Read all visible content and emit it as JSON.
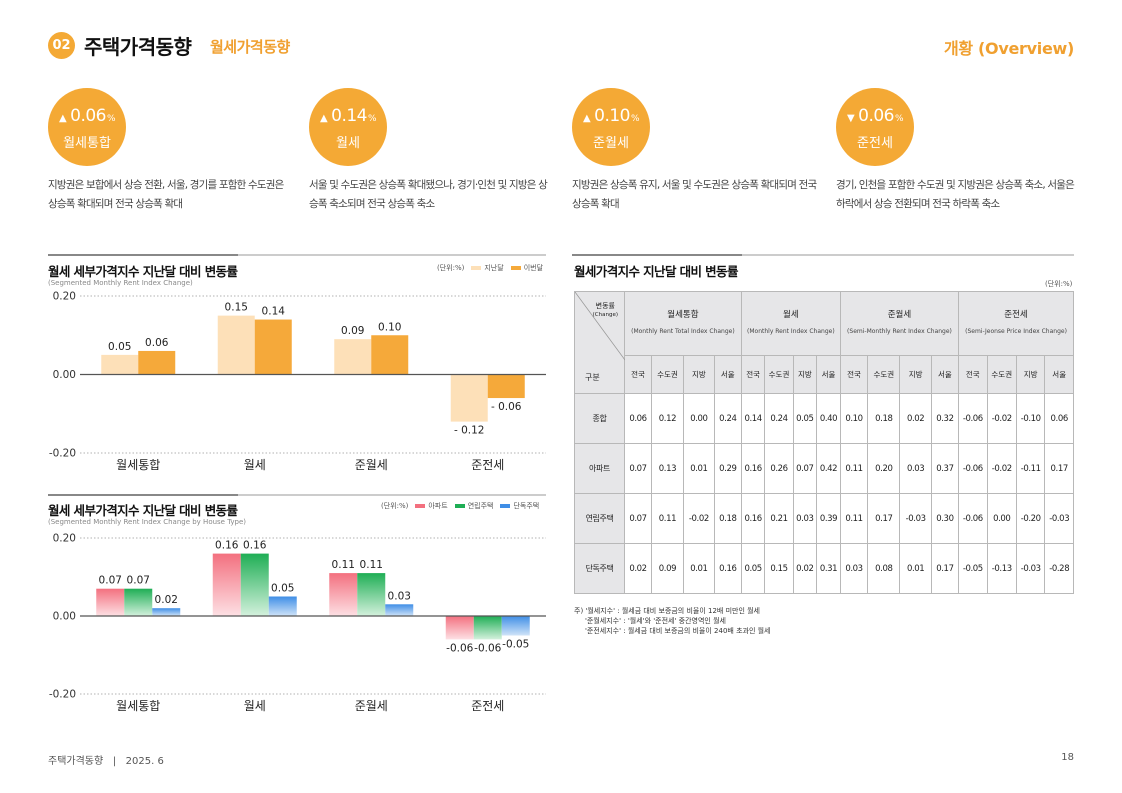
{
  "header": {
    "badge": "02",
    "title": "주택가격동향",
    "subtitle": "월세가격동향",
    "right": "개황 (Overview)"
  },
  "stats": [
    {
      "arrow": "▲",
      "value": "0.06",
      "unit": "%",
      "label": "월세통합",
      "desc": "지방권은 보합에서 상승 전환, 서울, 경기를 포함한 수도권은 상승폭 확대되며 전국 상승폭 확대"
    },
    {
      "arrow": "▲",
      "value": "0.14",
      "unit": "%",
      "label": "월세",
      "desc": "서울 및 수도권은 상승폭 확대됐으나, 경기·인천 및 지방은 상승폭 축소되며 전국 상승폭 축소"
    },
    {
      "arrow": "▲",
      "value": "0.10",
      "unit": "%",
      "label": "준월세",
      "desc": "지방권은 상승폭 유지, 서울 및 수도권은 상승폭 확대되며 전국 상승폭 확대"
    },
    {
      "arrow": "▼",
      "value": "0.06",
      "unit": "%",
      "label": "준전세",
      "desc": "경기, 인천을 포함한 수도권 및 지방권은 상승폭 축소, 서울은 하락에서 상승 전환되며 전국 하락폭 축소"
    }
  ],
  "colors": {
    "accent": "#f4a935",
    "prev_month": "#fde0b8",
    "this_month": "#f5a93a",
    "apt_top": "#f3707f",
    "apt_bottom": "#fde0e4",
    "row_top": "#1fae55",
    "row_bottom": "#d4f1dd",
    "det_top": "#3f8ee6",
    "det_bottom": "#cfe3f8"
  },
  "chart_data": [
    {
      "type": "bar",
      "title": "월세 세부가격지수 지난달 대비 변동률",
      "subtitle": "(Segmented Monthly Rent Index Change)",
      "unit": "(단위:%)",
      "categories": [
        "월세통합",
        "월세",
        "준월세",
        "준전세"
      ],
      "series": [
        {
          "name": "지난달",
          "values": [
            0.05,
            0.15,
            0.09,
            -0.12
          ],
          "labels": [
            "0.05",
            "0.15",
            "0.09",
            "- 0.12"
          ]
        },
        {
          "name": "이번달",
          "values": [
            0.06,
            0.14,
            0.1,
            -0.06
          ],
          "labels": [
            "0.06",
            "0.14",
            "0.10",
            "- 0.06"
          ]
        }
      ],
      "ylim": [
        -0.2,
        0.2
      ],
      "yticks": [
        "0.20",
        "0.00",
        "-0.20"
      ],
      "legend": "top-right",
      "grid": false
    },
    {
      "type": "bar",
      "title": "월세 세부가격지수 지난달 대비 변동률",
      "subtitle": "(Segmented Monthly Rent Index Change by House Type)",
      "unit": "(단위:%)",
      "categories": [
        "월세통합",
        "월세",
        "준월세",
        "준전세"
      ],
      "series": [
        {
          "name": "아파트",
          "values": [
            0.07,
            0.16,
            0.11,
            -0.06
          ],
          "labels": [
            "0.07",
            "0.16",
            "0.11",
            "-0.06"
          ]
        },
        {
          "name": "연립주택",
          "values": [
            0.07,
            0.16,
            0.11,
            -0.06
          ],
          "labels": [
            "0.07",
            "0.16",
            "0.11",
            "-0.06"
          ]
        },
        {
          "name": "단독주택",
          "values": [
            0.02,
            0.05,
            0.03,
            -0.05
          ],
          "labels": [
            "0.02",
            "0.05",
            "0.03",
            "-0.05"
          ]
        }
      ],
      "ylim": [
        -0.2,
        0.2
      ],
      "yticks": [
        "0.20",
        "0.00",
        "-0.20"
      ],
      "legend": "top-right",
      "grid": false
    },
    {
      "type": "table",
      "title": "월세가격지수 지난달 대비 변동률",
      "unit": "(단위:%)",
      "corner_top": "변동률",
      "corner_top_en": "(Change)",
      "corner_bottom": "구분",
      "groups": [
        {
          "name": "월세통합",
          "en": "(Monthly Rent Total Index Change)"
        },
        {
          "name": "월세",
          "en": "(Monthly Rent Index Change)"
        },
        {
          "name": "준월세",
          "en": "(Semi-Monthly Rent Index Change)"
        },
        {
          "name": "준전세",
          "en": "(Semi-Jeonse Price Index Change)"
        }
      ],
      "subcolumns": [
        "전국",
        "수도권",
        "지방",
        "서울"
      ],
      "rows": [
        {
          "label": "종합",
          "values": [
            "0.06",
            "0.12",
            "0.00",
            "0.24",
            "0.14",
            "0.24",
            "0.05",
            "0.40",
            "0.10",
            "0.18",
            "0.02",
            "0.32",
            "-0.06",
            "-0.02",
            "-0.10",
            "0.06"
          ]
        },
        {
          "label": "아파트",
          "values": [
            "0.07",
            "0.13",
            "0.01",
            "0.29",
            "0.16",
            "0.26",
            "0.07",
            "0.42",
            "0.11",
            "0.20",
            "0.03",
            "0.37",
            "-0.06",
            "-0.02",
            "-0.11",
            "0.17"
          ]
        },
        {
          "label": "연립주택",
          "values": [
            "0.07",
            "0.11",
            "-0.02",
            "0.18",
            "0.16",
            "0.21",
            "0.03",
            "0.39",
            "0.11",
            "0.17",
            "-0.03",
            "0.30",
            "-0.06",
            "0.00",
            "-0.20",
            "-0.03"
          ]
        },
        {
          "label": "단독주택",
          "values": [
            "0.02",
            "0.09",
            "0.01",
            "0.16",
            "0.05",
            "0.15",
            "0.02",
            "0.31",
            "0.03",
            "0.08",
            "0.01",
            "0.17",
            "-0.05",
            "-0.13",
            "-0.03",
            "-0.28"
          ]
        }
      ]
    }
  ],
  "notes": [
    "주) '월세지수' : 월세금 대비 보증금의 비율이 12배 미만인 월세",
    "'준월세지수' : '월세'와 '준전세' 중간영역인 월세",
    "'준전세지수' : 월세금 대비 보증금의 비율이 240배 초과인 월세"
  ],
  "footer": {
    "left": "주택가격동향   |   2025. 6",
    "page": "18"
  }
}
